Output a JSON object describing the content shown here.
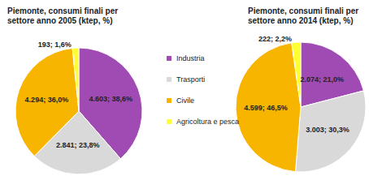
{
  "chart_data": [
    {
      "type": "pie",
      "title": "Piemonte, consumi finali per settore anno 2005 (ktep, %)",
      "categories": [
        "Industria",
        "Trasporti",
        "Civile",
        "Agricoltura e pesca"
      ],
      "values": [
        4603,
        2841,
        4294,
        193
      ],
      "value_labels": [
        "4.603; 38,6%",
        "2.841; 23,8%",
        "4.294; 36,0%",
        "193; 1,6%"
      ],
      "colors": [
        "#a04bb3",
        "#d9d9d9",
        "#f7b500",
        "#ffff33"
      ],
      "data_labels": true,
      "legend": "right"
    },
    {
      "type": "pie",
      "title": "Piemonte, consumi finali per settore anno 2014 (ktep, %)",
      "categories": [
        "Industria",
        "Trasporti",
        "Civile",
        "Agricoltura e pesca"
      ],
      "values": [
        2074,
        3003,
        4599,
        222
      ],
      "value_labels": [
        "2.074; 21,0%",
        "3.003; 30,3%",
        "4.599; 46,5%",
        "222; 2,2%"
      ],
      "colors": [
        "#a04bb3",
        "#d9d9d9",
        "#f7b500",
        "#ffff33"
      ],
      "data_labels": true
    }
  ]
}
